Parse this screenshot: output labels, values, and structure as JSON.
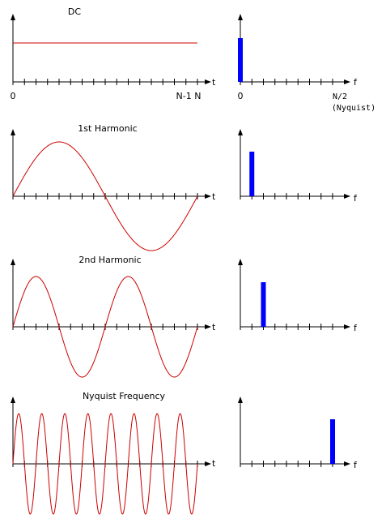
{
  "colors": {
    "wave": "#cc0000",
    "bar": "#0000ff",
    "axis": "#000000"
  },
  "axis_labels": {
    "time": "t",
    "freq": "f"
  },
  "tick_labels": {
    "time_start": "0",
    "time_end": "N-1 N",
    "freq_start": "0",
    "freq_end": "N/2",
    "freq_end_note": "(Nyquist)"
  },
  "panels": [
    {
      "title": "DC",
      "cycles": 0,
      "bin": 0
    },
    {
      "title": "1st Harmonic",
      "cycles": 1,
      "bin": 1
    },
    {
      "title": "2nd Harmonic",
      "cycles": 2,
      "bin": 2
    },
    {
      "title": "Nyquist Frequency",
      "cycles": 8,
      "bin": 8
    }
  ]
}
